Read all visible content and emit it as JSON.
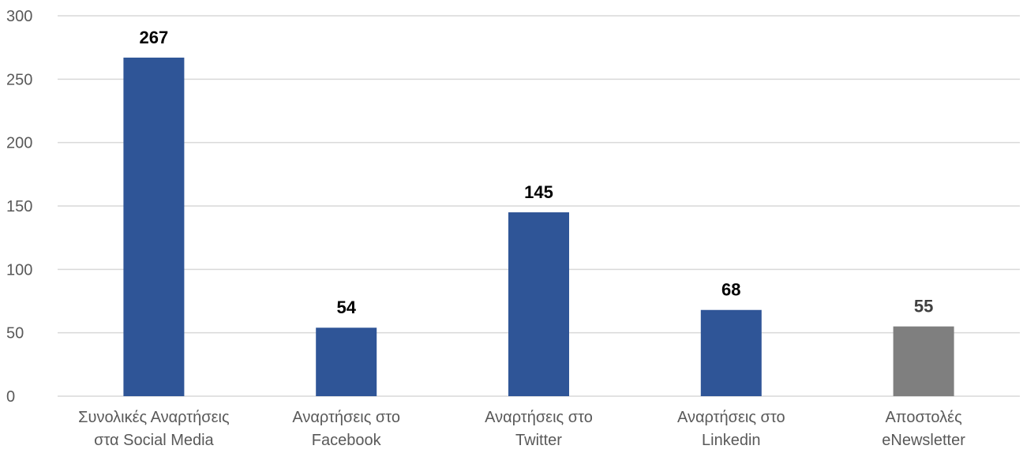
{
  "chart_data": {
    "type": "bar",
    "title": "",
    "xlabel": "",
    "ylabel": "",
    "categories": [
      [
        "Συνολικές Αναρτήσεις",
        "στα Social Media"
      ],
      [
        "Αναρτήσεις στο",
        "Facebook"
      ],
      [
        "Αναρτήσεις στο",
        "Twitter"
      ],
      [
        "Αναρτήσεις στο",
        "Linkedin"
      ],
      [
        "Αποστολές",
        "eNewsletter"
      ]
    ],
    "values": [
      267,
      54,
      145,
      68,
      55
    ],
    "bar_colors": [
      "#2f5597",
      "#2f5597",
      "#2f5597",
      "#2f5597",
      "#7f7f7f"
    ],
    "label_colors": [
      "#000000",
      "#000000",
      "#000000",
      "#000000",
      "#404040"
    ],
    "ylim": [
      0,
      300
    ],
    "yticks": [
      0,
      50,
      100,
      150,
      200,
      250,
      300
    ],
    "grid": true,
    "legend": "none"
  }
}
